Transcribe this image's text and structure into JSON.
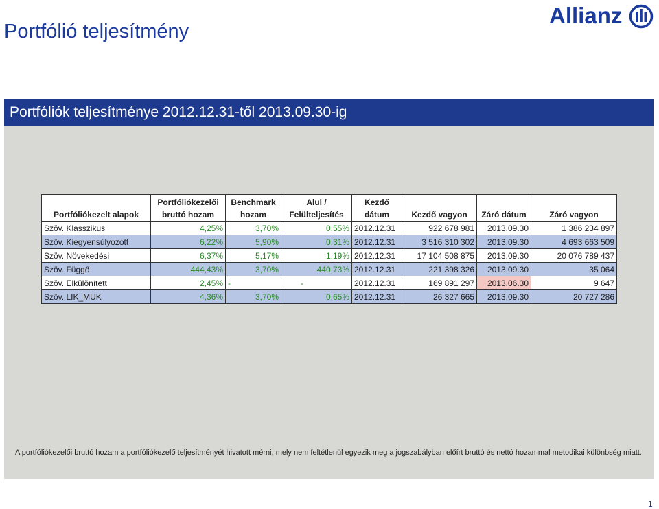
{
  "header": {
    "title": "Portfólió teljesítmény",
    "logo_text": "Allianz"
  },
  "banner": {
    "title": "Portfóliók teljesítménye 2012.12.31-től 2013.09.30-ig"
  },
  "table": {
    "headers": [
      {
        "line1": "",
        "line2": "Portfóliókezelt alapok"
      },
      {
        "line1": "Portfóliókezelői",
        "line2": "bruttó hozam"
      },
      {
        "line1": "Benchmark",
        "line2": "hozam"
      },
      {
        "line1": "Alul /",
        "line2": "Felülteljesítés"
      },
      {
        "line1": "Kezdő",
        "line2": "dátum"
      },
      {
        "line1": "",
        "line2": "Kezdő vagyon"
      },
      {
        "line1": "",
        "line2": "Záró dátum"
      },
      {
        "line1": "",
        "line2": "Záró vagyon"
      }
    ],
    "rows": [
      {
        "name": "Szöv. Klasszikus",
        "gross": "4,25%",
        "bench": "3,70%",
        "diff": "0,55%",
        "start_date": "2012.12.31",
        "start_assets": "922 678 981",
        "end_date": "2013.09.30",
        "end_assets": "1 386 234 897"
      },
      {
        "name": "Szöv. Kiegyensúlyozott",
        "gross": "6,22%",
        "bench": "5,90%",
        "diff": "0,31%",
        "start_date": "2012.12.31",
        "start_assets": "3 516 310 302",
        "end_date": "2013.09.30",
        "end_assets": "4 693 663 509"
      },
      {
        "name": "Szöv. Növekedési",
        "gross": "6,37%",
        "bench": "5,17%",
        "diff": "1,19%",
        "start_date": "2012.12.31",
        "start_assets": "17 104 508 875",
        "end_date": "2013.09.30",
        "end_assets": "20 076 789 437"
      },
      {
        "name": "Szöv. Függő",
        "gross": "444,43%",
        "bench": "3,70%",
        "diff": "440,73%",
        "start_date": "2012.12.31",
        "start_assets": "221 398 326",
        "end_date": "2013.09.30",
        "end_assets": "35 064"
      },
      {
        "name": "Szöv. Elkülönített",
        "gross": "2,45%",
        "bench": "-",
        "diff": "-",
        "start_date": "2012.12.31",
        "start_assets": "169 891 297",
        "end_date": "2013.06.30",
        "end_assets": "9 647"
      },
      {
        "name": "Szöv. LIK_MUK",
        "gross": "4,36%",
        "bench": "3,70%",
        "diff": "0,65%",
        "start_date": "2012.12.31",
        "start_assets": "26 327 665",
        "end_date": "2013.09.30",
        "end_assets": "20 727 286"
      }
    ],
    "colors": {
      "odd_row": "#ffffff",
      "even_row": "#b8c6e6",
      "percent_text": "#2a8a2a",
      "highlight": "#f5c8c4"
    }
  },
  "footnote": "A portfóliókezelői bruttó hozam a portfóliókezelő teljesítményét hivatott mérni, mely nem feltétlenül egyezik meg a jogszabályban előírt bruttó és nettó hozammal metodikai különbség miatt.",
  "page_number": "1"
}
